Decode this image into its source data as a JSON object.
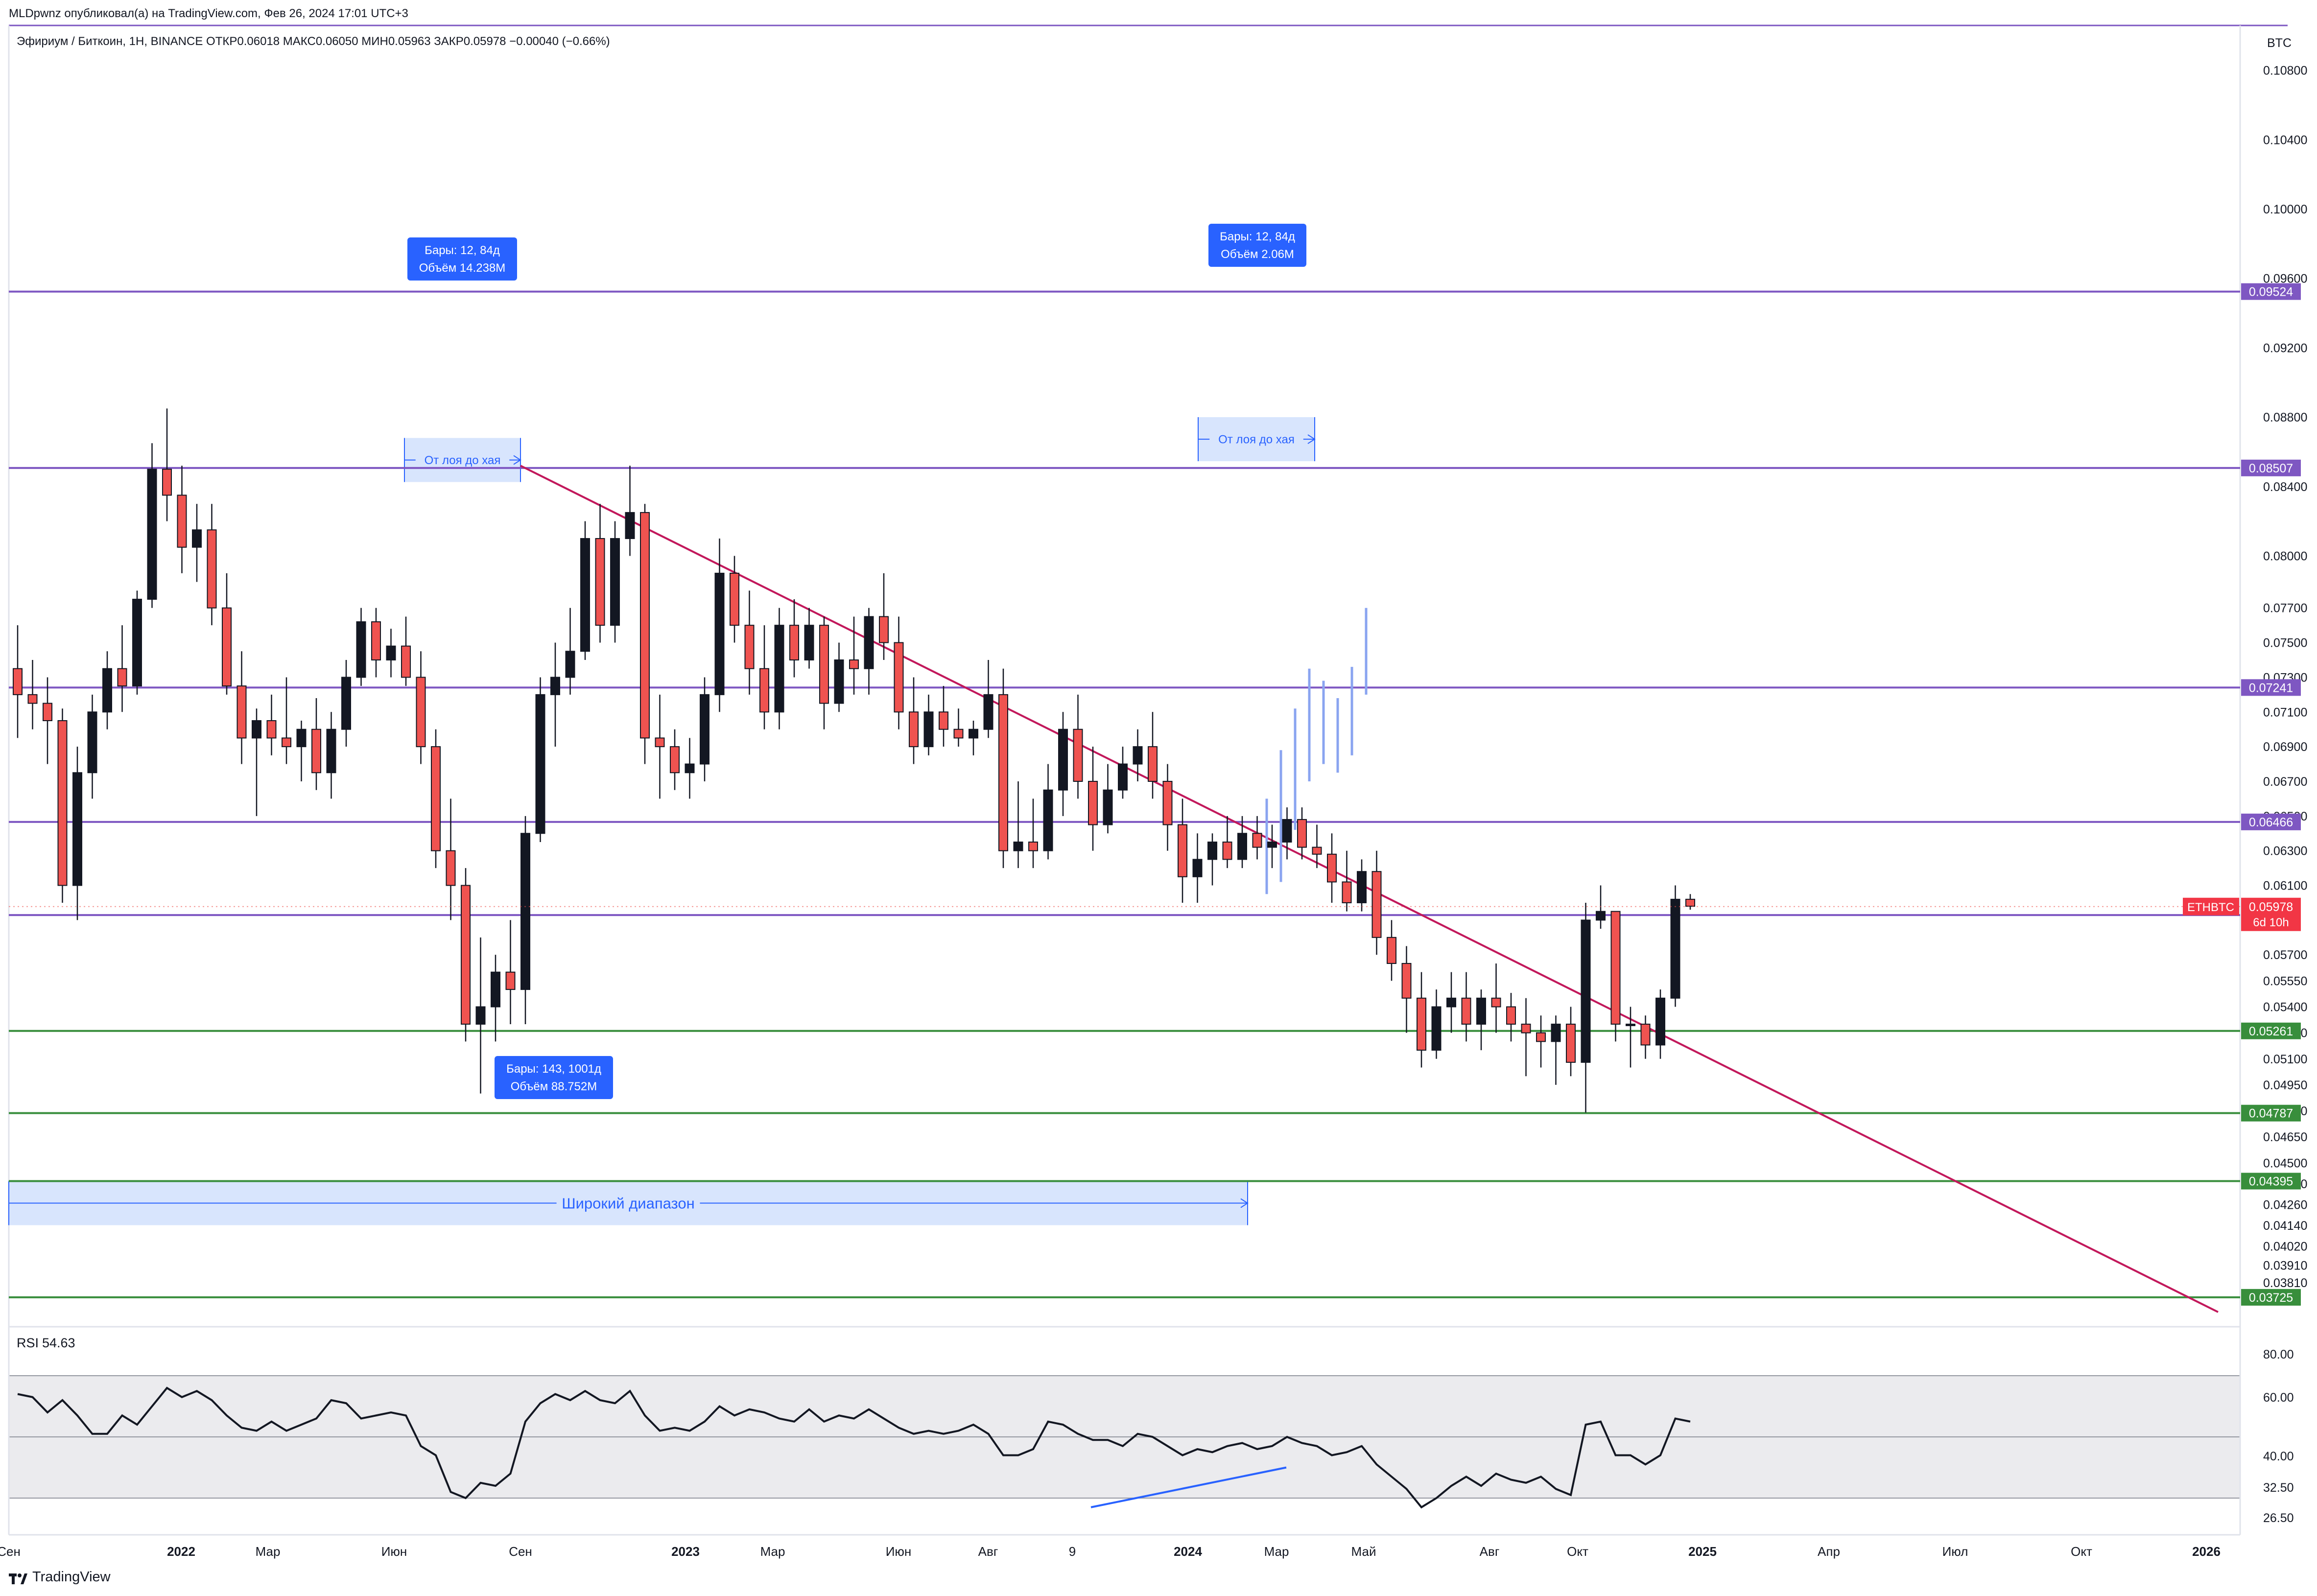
{
  "header": {
    "published": "MLDpwnz опубликовал(а) на TradingView.com, Фев 26, 2024 17:01 UTC+3"
  },
  "legend": {
    "symbol": "Эфириум / Биткоин, 1Н, BINANCE",
    "open_label": "ОТКР",
    "open": "0.06018",
    "high_label": "МАКС",
    "high": "0.06050",
    "low_label": "МИН",
    "low": "0.05963",
    "close_label": "ЗАКР",
    "close": "0.05978",
    "change": "−0.00040 (−0.66%)"
  },
  "price_axis": {
    "currency": "BTC",
    "ticks": [
      "0.10800",
      "0.10400",
      "0.10000",
      "0.09600",
      "0.09200",
      "0.08800",
      "0.08400",
      "0.08000",
      "0.07700",
      "0.07500",
      "0.07300",
      "0.07100",
      "0.06900",
      "0.06700",
      "0.06500",
      "0.06300",
      "0.06100",
      "0.05700",
      "0.05550",
      "0.05400",
      "0.05250",
      "0.05100",
      "0.04950",
      "0.04800",
      "0.04650",
      "0.04500",
      "0.04380",
      "0.04260",
      "0.04140",
      "0.04020",
      "0.03910",
      "0.03810"
    ]
  },
  "levels": [
    {
      "value": "0.09524",
      "color": "#7e57c2"
    },
    {
      "value": "0.08507",
      "color": "#7e57c2"
    },
    {
      "value": "0.07241",
      "color": "#7e57c2"
    },
    {
      "value": "0.06466",
      "color": "#7e57c2"
    },
    {
      "value": "0.05929",
      "color": "#7e57c2"
    },
    {
      "value": "0.05261",
      "color": "#388e3c"
    },
    {
      "value": "0.04787",
      "color": "#388e3c"
    },
    {
      "value": "0.04395",
      "color": "#388e3c"
    },
    {
      "value": "0.03725",
      "color": "#388e3c"
    }
  ],
  "last_price": {
    "symbol": "ETHBTC",
    "price": "0.05978",
    "countdown": "6d 10h",
    "color": "#f23645"
  },
  "annotations": {
    "range1": {
      "bars": "Бары: 12, 84д",
      "volume": "Объём 14.238М",
      "label": "От лоя до хая"
    },
    "range2": {
      "bars": "Бары: 12, 84д",
      "volume": "Объём 2.06М",
      "label": "От лоя до хая"
    },
    "range3": {
      "bars": "Бары: 143, 1001д",
      "volume": "Объём 88.752М",
      "label": "Широкий диапазон"
    }
  },
  "rsi": {
    "label": "RSI",
    "value": "54.63",
    "ticks": [
      "80.00",
      "60.00",
      "40.00",
      "32.50",
      "26.50"
    ],
    "upper_band": 70,
    "lower_band": 30,
    "middle": 50
  },
  "time_axis": {
    "labels": [
      "Сен",
      "2022",
      "Мар",
      "Июн",
      "Сен",
      "2023",
      "Мар",
      "Июн",
      "Авг",
      "9",
      "2024",
      "Мар",
      "Май",
      "Авг",
      "Окт",
      "2025",
      "Апр",
      "Июл",
      "Окт",
      "2026"
    ]
  },
  "footer": {
    "brand": "TradingView"
  },
  "colors": {
    "bull": "#131722",
    "bear": "#ef5350",
    "trendline": "#c2185b",
    "range_fill": "#d1e0fd",
    "range_label_bg": "#2962ff",
    "projection": "#8aa4f0"
  },
  "chart_data": {
    "type": "candlestick",
    "title": "Эфириум / Биткоин, 1Н, BINANCE",
    "y_unit": "BTC",
    "ylim": [
      0.0364,
      0.1105
    ],
    "candles": [
      {
        "o": 0.0735,
        "h": 0.076,
        "l": 0.0695,
        "c": 0.072
      },
      {
        "o": 0.072,
        "h": 0.074,
        "l": 0.07,
        "c": 0.0715
      },
      {
        "o": 0.0715,
        "h": 0.073,
        "l": 0.068,
        "c": 0.0705
      },
      {
        "o": 0.0705,
        "h": 0.0712,
        "l": 0.06,
        "c": 0.061
      },
      {
        "o": 0.061,
        "h": 0.069,
        "l": 0.059,
        "c": 0.0675
      },
      {
        "o": 0.0675,
        "h": 0.072,
        "l": 0.066,
        "c": 0.071
      },
      {
        "o": 0.071,
        "h": 0.0745,
        "l": 0.07,
        "c": 0.0735
      },
      {
        "o": 0.0735,
        "h": 0.076,
        "l": 0.071,
        "c": 0.0725
      },
      {
        "o": 0.0725,
        "h": 0.078,
        "l": 0.072,
        "c": 0.0775
      },
      {
        "o": 0.0775,
        "h": 0.0865,
        "l": 0.077,
        "c": 0.085
      },
      {
        "o": 0.085,
        "h": 0.0885,
        "l": 0.082,
        "c": 0.0835
      },
      {
        "o": 0.0835,
        "h": 0.0852,
        "l": 0.079,
        "c": 0.0805
      },
      {
        "o": 0.0805,
        "h": 0.083,
        "l": 0.0785,
        "c": 0.0815
      },
      {
        "o": 0.0815,
        "h": 0.083,
        "l": 0.076,
        "c": 0.077
      },
      {
        "o": 0.077,
        "h": 0.079,
        "l": 0.072,
        "c": 0.0725
      },
      {
        "o": 0.0725,
        "h": 0.0745,
        "l": 0.068,
        "c": 0.0695
      },
      {
        "o": 0.0695,
        "h": 0.0712,
        "l": 0.065,
        "c": 0.0705
      },
      {
        "o": 0.0705,
        "h": 0.072,
        "l": 0.0685,
        "c": 0.0695
      },
      {
        "o": 0.0695,
        "h": 0.073,
        "l": 0.068,
        "c": 0.069
      },
      {
        "o": 0.069,
        "h": 0.0705,
        "l": 0.067,
        "c": 0.07
      },
      {
        "o": 0.07,
        "h": 0.0718,
        "l": 0.0665,
        "c": 0.0675
      },
      {
        "o": 0.0675,
        "h": 0.071,
        "l": 0.066,
        "c": 0.07
      },
      {
        "o": 0.07,
        "h": 0.074,
        "l": 0.069,
        "c": 0.073
      },
      {
        "o": 0.073,
        "h": 0.077,
        "l": 0.0725,
        "c": 0.0762
      },
      {
        "o": 0.0762,
        "h": 0.077,
        "l": 0.073,
        "c": 0.074
      },
      {
        "o": 0.074,
        "h": 0.0758,
        "l": 0.073,
        "c": 0.0748
      },
      {
        "o": 0.0748,
        "h": 0.0765,
        "l": 0.0725,
        "c": 0.073
      },
      {
        "o": 0.073,
        "h": 0.0745,
        "l": 0.068,
        "c": 0.069
      },
      {
        "o": 0.069,
        "h": 0.07,
        "l": 0.062,
        "c": 0.063
      },
      {
        "o": 0.063,
        "h": 0.066,
        "l": 0.059,
        "c": 0.061
      },
      {
        "o": 0.061,
        "h": 0.062,
        "l": 0.052,
        "c": 0.053
      },
      {
        "o": 0.053,
        "h": 0.058,
        "l": 0.049,
        "c": 0.054
      },
      {
        "o": 0.054,
        "h": 0.057,
        "l": 0.052,
        "c": 0.056
      },
      {
        "o": 0.056,
        "h": 0.059,
        "l": 0.053,
        "c": 0.055
      },
      {
        "o": 0.055,
        "h": 0.065,
        "l": 0.053,
        "c": 0.064
      },
      {
        "o": 0.064,
        "h": 0.073,
        "l": 0.0635,
        "c": 0.072
      },
      {
        "o": 0.072,
        "h": 0.075,
        "l": 0.069,
        "c": 0.073
      },
      {
        "o": 0.073,
        "h": 0.077,
        "l": 0.072,
        "c": 0.0745
      },
      {
        "o": 0.0745,
        "h": 0.082,
        "l": 0.074,
        "c": 0.081
      },
      {
        "o": 0.081,
        "h": 0.083,
        "l": 0.075,
        "c": 0.076
      },
      {
        "o": 0.076,
        "h": 0.082,
        "l": 0.075,
        "c": 0.081
      },
      {
        "o": 0.081,
        "h": 0.0852,
        "l": 0.08,
        "c": 0.0825
      },
      {
        "o": 0.0825,
        "h": 0.083,
        "l": 0.068,
        "c": 0.0695
      },
      {
        "o": 0.0695,
        "h": 0.072,
        "l": 0.066,
        "c": 0.069
      },
      {
        "o": 0.069,
        "h": 0.07,
        "l": 0.0665,
        "c": 0.0675
      },
      {
        "o": 0.0675,
        "h": 0.0695,
        "l": 0.066,
        "c": 0.068
      },
      {
        "o": 0.068,
        "h": 0.073,
        "l": 0.067,
        "c": 0.072
      },
      {
        "o": 0.072,
        "h": 0.081,
        "l": 0.071,
        "c": 0.079
      },
      {
        "o": 0.079,
        "h": 0.08,
        "l": 0.075,
        "c": 0.076
      },
      {
        "o": 0.076,
        "h": 0.078,
        "l": 0.072,
        "c": 0.0735
      },
      {
        "o": 0.0735,
        "h": 0.076,
        "l": 0.07,
        "c": 0.071
      },
      {
        "o": 0.071,
        "h": 0.077,
        "l": 0.07,
        "c": 0.076
      },
      {
        "o": 0.076,
        "h": 0.0775,
        "l": 0.073,
        "c": 0.074
      },
      {
        "o": 0.074,
        "h": 0.077,
        "l": 0.0735,
        "c": 0.076
      },
      {
        "o": 0.076,
        "h": 0.0765,
        "l": 0.07,
        "c": 0.0715
      },
      {
        "o": 0.0715,
        "h": 0.075,
        "l": 0.071,
        "c": 0.074
      },
      {
        "o": 0.074,
        "h": 0.0765,
        "l": 0.072,
        "c": 0.0735
      },
      {
        "o": 0.0735,
        "h": 0.077,
        "l": 0.072,
        "c": 0.0765
      },
      {
        "o": 0.0765,
        "h": 0.079,
        "l": 0.074,
        "c": 0.075
      },
      {
        "o": 0.075,
        "h": 0.0765,
        "l": 0.07,
        "c": 0.071
      },
      {
        "o": 0.071,
        "h": 0.073,
        "l": 0.068,
        "c": 0.069
      },
      {
        "o": 0.069,
        "h": 0.072,
        "l": 0.0685,
        "c": 0.071
      },
      {
        "o": 0.071,
        "h": 0.0725,
        "l": 0.069,
        "c": 0.07
      },
      {
        "o": 0.07,
        "h": 0.0712,
        "l": 0.069,
        "c": 0.0695
      },
      {
        "o": 0.0695,
        "h": 0.0705,
        "l": 0.0685,
        "c": 0.07
      },
      {
        "o": 0.07,
        "h": 0.074,
        "l": 0.0695,
        "c": 0.072
      },
      {
        "o": 0.072,
        "h": 0.0735,
        "l": 0.062,
        "c": 0.063
      },
      {
        "o": 0.063,
        "h": 0.067,
        "l": 0.062,
        "c": 0.0635
      },
      {
        "o": 0.0635,
        "h": 0.066,
        "l": 0.062,
        "c": 0.063
      },
      {
        "o": 0.063,
        "h": 0.068,
        "l": 0.0625,
        "c": 0.0665
      },
      {
        "o": 0.0665,
        "h": 0.071,
        "l": 0.065,
        "c": 0.07
      },
      {
        "o": 0.07,
        "h": 0.072,
        "l": 0.066,
        "c": 0.067
      },
      {
        "o": 0.067,
        "h": 0.069,
        "l": 0.063,
        "c": 0.0645
      },
      {
        "o": 0.0645,
        "h": 0.068,
        "l": 0.064,
        "c": 0.0665
      },
      {
        "o": 0.0665,
        "h": 0.069,
        "l": 0.066,
        "c": 0.068
      },
      {
        "o": 0.068,
        "h": 0.07,
        "l": 0.067,
        "c": 0.069
      },
      {
        "o": 0.069,
        "h": 0.071,
        "l": 0.066,
        "c": 0.067
      },
      {
        "o": 0.067,
        "h": 0.068,
        "l": 0.063,
        "c": 0.0645
      },
      {
        "o": 0.0645,
        "h": 0.066,
        "l": 0.06,
        "c": 0.0615
      },
      {
        "o": 0.0615,
        "h": 0.064,
        "l": 0.06,
        "c": 0.0625
      },
      {
        "o": 0.0625,
        "h": 0.064,
        "l": 0.061,
        "c": 0.0635
      },
      {
        "o": 0.0635,
        "h": 0.065,
        "l": 0.062,
        "c": 0.0625
      },
      {
        "o": 0.0625,
        "h": 0.065,
        "l": 0.062,
        "c": 0.064
      },
      {
        "o": 0.064,
        "h": 0.065,
        "l": 0.0625,
        "c": 0.0632
      },
      {
        "o": 0.0632,
        "h": 0.0645,
        "l": 0.062,
        "c": 0.0635
      },
      {
        "o": 0.0635,
        "h": 0.0655,
        "l": 0.0625,
        "c": 0.0648
      },
      {
        "o": 0.0648,
        "h": 0.0655,
        "l": 0.0625,
        "c": 0.0632
      },
      {
        "o": 0.0632,
        "h": 0.0645,
        "l": 0.062,
        "c": 0.0628
      },
      {
        "o": 0.0628,
        "h": 0.064,
        "l": 0.06,
        "c": 0.0612
      },
      {
        "o": 0.0612,
        "h": 0.063,
        "l": 0.0595,
        "c": 0.06
      },
      {
        "o": 0.06,
        "h": 0.0625,
        "l": 0.0595,
        "c": 0.0618
      },
      {
        "o": 0.0618,
        "h": 0.063,
        "l": 0.057,
        "c": 0.058
      },
      {
        "o": 0.058,
        "h": 0.059,
        "l": 0.0555,
        "c": 0.0565
      },
      {
        "o": 0.0565,
        "h": 0.0575,
        "l": 0.0525,
        "c": 0.0545
      },
      {
        "o": 0.0545,
        "h": 0.056,
        "l": 0.0505,
        "c": 0.0515
      },
      {
        "o": 0.0515,
        "h": 0.055,
        "l": 0.051,
        "c": 0.054
      },
      {
        "o": 0.054,
        "h": 0.056,
        "l": 0.0525,
        "c": 0.0545
      },
      {
        "o": 0.0545,
        "h": 0.056,
        "l": 0.052,
        "c": 0.053
      },
      {
        "o": 0.053,
        "h": 0.055,
        "l": 0.0515,
        "c": 0.0545
      },
      {
        "o": 0.0545,
        "h": 0.0565,
        "l": 0.0525,
        "c": 0.054
      },
      {
        "o": 0.054,
        "h": 0.0548,
        "l": 0.052,
        "c": 0.053
      },
      {
        "o": 0.053,
        "h": 0.0545,
        "l": 0.05,
        "c": 0.0525
      },
      {
        "o": 0.0525,
        "h": 0.0535,
        "l": 0.0505,
        "c": 0.052
      },
      {
        "o": 0.052,
        "h": 0.0535,
        "l": 0.0495,
        "c": 0.053
      },
      {
        "o": 0.053,
        "h": 0.054,
        "l": 0.05,
        "c": 0.0508
      },
      {
        "o": 0.0508,
        "h": 0.06,
        "l": 0.0479,
        "c": 0.059
      },
      {
        "o": 0.059,
        "h": 0.061,
        "l": 0.0585,
        "c": 0.0595
      },
      {
        "o": 0.0595,
        "h": 0.0595,
        "l": 0.052,
        "c": 0.053
      },
      {
        "o": 0.053,
        "h": 0.054,
        "l": 0.0505,
        "c": 0.053
      },
      {
        "o": 0.053,
        "h": 0.0535,
        "l": 0.051,
        "c": 0.0518
      },
      {
        "o": 0.0518,
        "h": 0.055,
        "l": 0.051,
        "c": 0.0545
      },
      {
        "o": 0.0545,
        "h": 0.061,
        "l": 0.054,
        "c": 0.0602
      },
      {
        "o": 0.0602,
        "h": 0.0605,
        "l": 0.0596,
        "c": 0.0598
      }
    ],
    "trendline": [
      {
        "date": "Сен 2022",
        "value": 0.0852
      },
      {
        "date": "2026",
        "value": 0.0364
      }
    ],
    "projection_bars": [
      {
        "low": 0.0605,
        "high": 0.066
      },
      {
        "low": 0.0612,
        "high": 0.0688
      },
      {
        "low": 0.0642,
        "high": 0.0712
      },
      {
        "low": 0.067,
        "high": 0.0735
      },
      {
        "low": 0.068,
        "high": 0.0728
      },
      {
        "low": 0.0675,
        "high": 0.0718
      },
      {
        "low": 0.0685,
        "high": 0.0736
      },
      {
        "low": 0.072,
        "high": 0.077
      }
    ],
    "rsi_series": [
      64,
      63,
      58,
      62,
      57,
      51,
      51,
      57,
      54,
      60,
      66,
      63,
      65,
      62,
      57,
      53,
      52,
      55,
      52,
      54,
      56,
      62,
      61,
      56,
      57,
      58,
      57,
      47,
      44,
      32,
      30,
      35,
      34,
      38,
      55,
      61,
      64,
      62,
      65,
      62,
      61,
      65,
      57,
      52,
      53,
      52,
      55,
      60,
      57,
      59,
      58,
      56,
      55,
      59,
      55,
      57,
      56,
      59,
      56,
      53,
      51,
      52,
      51,
      52,
      54,
      51,
      44,
      44,
      46,
      55,
      54,
      51,
      49,
      49,
      47,
      51,
      50,
      47,
      44,
      46,
      45,
      47,
      48,
      46,
      47,
      50,
      48,
      47,
      44,
      45,
      47,
      41,
      37,
      33,
      27,
      30,
      34,
      37,
      34,
      38,
      36,
      35,
      37,
      33,
      31,
      54,
      55,
      44,
      44,
      41,
      44,
      56,
      55
    ]
  }
}
